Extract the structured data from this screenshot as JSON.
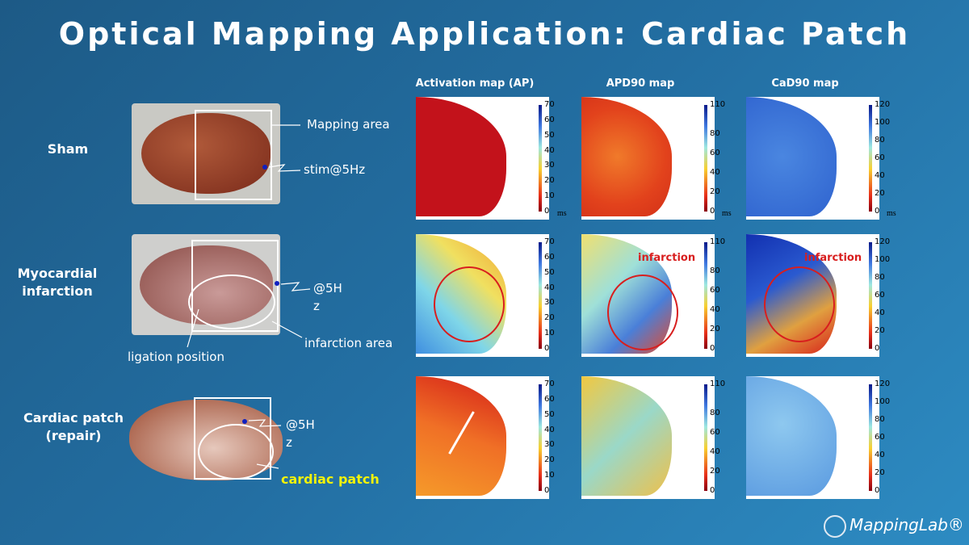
{
  "title": "Optical Mapping Application: Cardiac Patch",
  "columns": [
    "Activation map (AP)",
    "APD90 map",
    "CaD90 map"
  ],
  "rows": [
    {
      "label": "Sham",
      "annotations": [
        "Mapping area",
        "stim@5Hz"
      ]
    },
    {
      "label": "Myocardial infarction",
      "annotations": [
        "@5Hz",
        "infarction area",
        "ligation position"
      ],
      "map_labels": [
        "infarction",
        "infarction"
      ]
    },
    {
      "label": "Cardiac patch (repair)",
      "annotations": [
        "@5Hz",
        "cardiac patch"
      ]
    }
  ],
  "colorbars": [
    {
      "ticks": [
        0,
        10,
        20,
        30,
        40,
        50,
        60,
        70
      ]
    },
    {
      "ticks": [
        0,
        20,
        40,
        60,
        80,
        110
      ]
    },
    {
      "ticks": [
        0,
        20,
        40,
        60,
        80,
        100,
        120
      ]
    }
  ],
  "unit": "ms",
  "brand": "MappingLab®"
}
